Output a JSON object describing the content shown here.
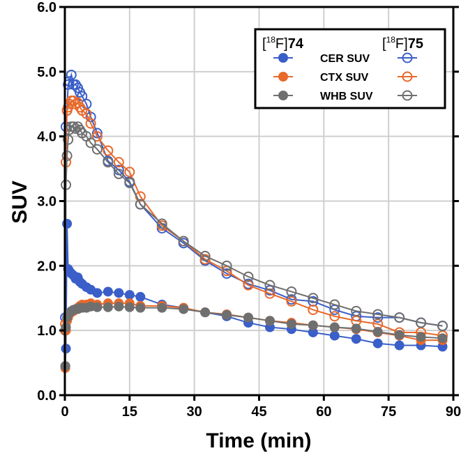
{
  "chart_data": {
    "type": "line",
    "xlabel": "Time (min)",
    "ylabel": "SUV",
    "xlim": [
      0,
      90
    ],
    "ylim": [
      0,
      6
    ],
    "xticks": [
      "0",
      "15",
      "30",
      "45",
      "60",
      "75",
      "90"
    ],
    "yticks": [
      "0.0",
      "1.0",
      "2.0",
      "3.0",
      "4.0",
      "5.0",
      "6.0"
    ],
    "grid": true,
    "legend": {
      "placement": "top-right",
      "group_left": {
        "prefix": "[",
        "sup": "18",
        "mid": "F]",
        "bold": "74"
      },
      "group_right": {
        "prefix": "[",
        "sup": "18",
        "mid": "F]",
        "bold": "75"
      },
      "rows": [
        "CER SUV",
        "CTX SUV",
        "WHB SUV"
      ]
    },
    "x": [
      0.1,
      0.25,
      0.5,
      0.75,
      1,
      1.5,
      2,
      2.5,
      3,
      3.5,
      4,
      5,
      6,
      7.5,
      10,
      12.5,
      15,
      17.5,
      22.5,
      27.5,
      32.5,
      37.5,
      42.5,
      47.5,
      52.5,
      57.5,
      62.5,
      67.5,
      72.5,
      77.5,
      82.5,
      87.5
    ],
    "series": [
      {
        "name": "CER SUV [18F]74",
        "color": "#3a5fc8",
        "filled": true,
        "values": [
          0.45,
          0.72,
          2.65,
          1.95,
          1.92,
          1.88,
          1.85,
          1.8,
          1.82,
          1.75,
          1.72,
          1.67,
          1.63,
          1.58,
          1.6,
          1.58,
          1.55,
          1.52,
          1.4,
          1.35,
          1.28,
          1.22,
          1.12,
          1.05,
          1.02,
          0.97,
          0.92,
          0.87,
          0.8,
          0.77,
          0.77,
          0.75
        ]
      },
      {
        "name": "CTX SUV [18F]74",
        "color": "#e8692a",
        "filled": true,
        "values": [
          0.42,
          1.0,
          1.15,
          1.2,
          1.25,
          1.28,
          1.3,
          1.33,
          1.35,
          1.38,
          1.4,
          1.4,
          1.42,
          1.4,
          1.42,
          1.42,
          1.42,
          1.38,
          1.38,
          1.35,
          1.28,
          1.25,
          1.2,
          1.15,
          1.12,
          1.08,
          1.05,
          1.02,
          0.97,
          0.92,
          0.85,
          0.85
        ]
      },
      {
        "name": "WHB SUV [18F]74",
        "color": "#6f6f6f",
        "filled": true,
        "values": [
          0.45,
          1.05,
          1.2,
          1.25,
          1.27,
          1.3,
          1.32,
          1.33,
          1.33,
          1.35,
          1.35,
          1.35,
          1.37,
          1.36,
          1.36,
          1.37,
          1.36,
          1.35,
          1.35,
          1.33,
          1.28,
          1.24,
          1.2,
          1.15,
          1.1,
          1.08,
          1.05,
          1.03,
          0.98,
          0.93,
          0.9,
          0.88
        ]
      },
      {
        "name": "CER SUV [18F]75",
        "color": "#3a5fc8",
        "filled": false,
        "values": [
          1.2,
          4.15,
          4.4,
          4.8,
          4.85,
          4.95,
          4.8,
          4.8,
          4.75,
          4.68,
          4.62,
          4.5,
          4.3,
          4.05,
          3.62,
          3.48,
          3.3,
          2.95,
          2.58,
          2.35,
          2.08,
          1.88,
          1.72,
          1.62,
          1.48,
          1.45,
          1.32,
          1.22,
          1.2,
          1.2,
          1.12,
          1.07
        ]
      },
      {
        "name": "CTX SUV [18F]75",
        "color": "#e8692a",
        "filled": false,
        "values": [
          1.1,
          3.6,
          4.4,
          4.45,
          4.5,
          4.55,
          4.55,
          4.5,
          4.52,
          4.45,
          4.4,
          4.35,
          4.2,
          4.0,
          3.78,
          3.6,
          3.45,
          3.07,
          2.62,
          2.38,
          2.1,
          1.92,
          1.7,
          1.57,
          1.45,
          1.32,
          1.22,
          1.15,
          1.1,
          0.97,
          0.97,
          0.92
        ]
      },
      {
        "name": "WHB SUV [18F]75",
        "color": "#6f6f6f",
        "filled": false,
        "values": [
          1.0,
          3.25,
          3.7,
          3.95,
          4.1,
          4.15,
          4.15,
          4.12,
          4.15,
          4.1,
          4.05,
          4.0,
          3.9,
          3.8,
          3.6,
          3.42,
          3.28,
          2.95,
          2.65,
          2.38,
          2.15,
          2.0,
          1.83,
          1.7,
          1.6,
          1.5,
          1.4,
          1.3,
          1.25,
          1.2,
          1.12,
          1.07
        ]
      }
    ]
  }
}
